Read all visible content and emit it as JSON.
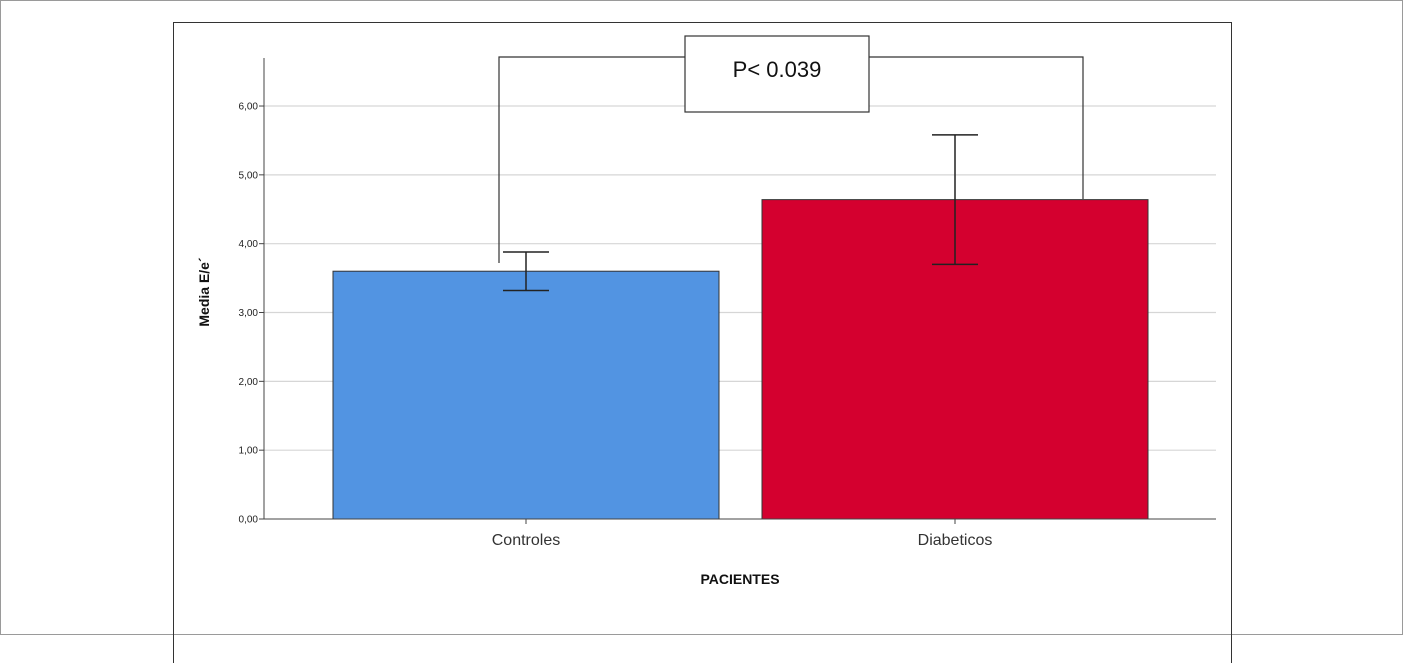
{
  "chart_data": {
    "type": "bar",
    "categories": [
      "Controles",
      "Diabeticos"
    ],
    "values": [
      3.6,
      4.64
    ],
    "error_bars": [
      {
        "low": 3.32,
        "high": 3.88
      },
      {
        "low": 3.7,
        "high": 5.58
      }
    ],
    "colors": [
      "#5294e2",
      "#d4002f"
    ],
    "bar_stroke": "#333333",
    "ylabel": "Media E/e´",
    "xlabel": "PACIENTES",
    "yticks": [
      "0,00",
      "1,00",
      "2,00",
      "3,00",
      "4,00",
      "5,00",
      "6,00"
    ],
    "ylim": [
      0,
      6.7
    ],
    "grid": true,
    "annotation": {
      "text": "P< 0.039"
    }
  }
}
